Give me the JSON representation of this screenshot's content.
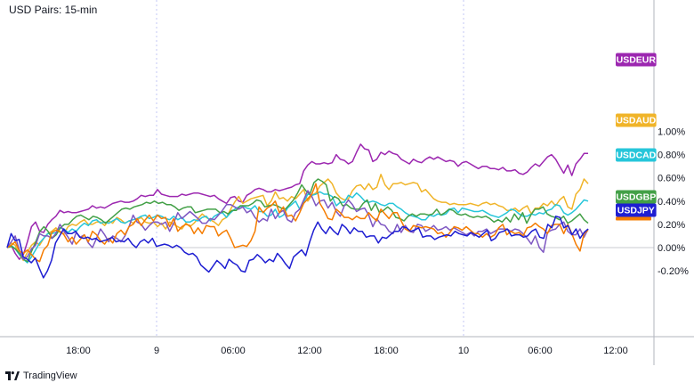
{
  "chart_data": {
    "type": "line",
    "title": "USD Pairs: 15-min",
    "x_tick_labels": [
      "18:00",
      "9",
      "06:00",
      "12:00",
      "18:00",
      "10",
      "06:00",
      "12:00"
    ],
    "day_separators": [
      "9",
      "10"
    ],
    "y_tick_labels": [
      "1.00%",
      "0.80%",
      "0.60%",
      "0.40%",
      "0.20%",
      "0.00%",
      "-0.20%"
    ],
    "ylim": [
      -0.37,
      1.0
    ],
    "grid": false,
    "series": [
      {
        "name": "USDEUR",
        "color": "#9c27b0",
        "last": 0.81,
        "values": [
          0.0,
          0.02,
          -0.05,
          -0.1,
          -0.06,
          0.05,
          0.18,
          0.22,
          0.14,
          0.13,
          0.2,
          0.24,
          0.27,
          0.32,
          0.3,
          0.31,
          0.3,
          0.3,
          0.31,
          0.32,
          0.33,
          0.36,
          0.34,
          0.35,
          0.34,
          0.36,
          0.38,
          0.39,
          0.4,
          0.39,
          0.39,
          0.4,
          0.42,
          0.45,
          0.44,
          0.45,
          0.45,
          0.5,
          0.46,
          0.45,
          0.44,
          0.44,
          0.44,
          0.46,
          0.45,
          0.46,
          0.47,
          0.47,
          0.46,
          0.45,
          0.44,
          0.45,
          0.42,
          0.4,
          0.38,
          0.43,
          0.44,
          0.4,
          0.39,
          0.45,
          0.47,
          0.5,
          0.51,
          0.5,
          0.48,
          0.48,
          0.5,
          0.49,
          0.5,
          0.51,
          0.52,
          0.54,
          0.55,
          0.66,
          0.71,
          0.74,
          0.72,
          0.72,
          0.73,
          0.72,
          0.73,
          0.8,
          0.76,
          0.75,
          0.72,
          0.74,
          0.82,
          0.89,
          0.85,
          0.84,
          0.74,
          0.76,
          0.82,
          0.8,
          0.83,
          0.81,
          0.8,
          0.76,
          0.74,
          0.72,
          0.76,
          0.74,
          0.73,
          0.76,
          0.78,
          0.76,
          0.78,
          0.76,
          0.74,
          0.75,
          0.74,
          0.7,
          0.73,
          0.74,
          0.72,
          0.7,
          0.68,
          0.7,
          0.7,
          0.68,
          0.68,
          0.67,
          0.69,
          0.66,
          0.66,
          0.67,
          0.64,
          0.63,
          0.65,
          0.69,
          0.72,
          0.7,
          0.74,
          0.78,
          0.8,
          0.76,
          0.7,
          0.64,
          0.71,
          0.62,
          0.72,
          0.76,
          0.81,
          0.81
        ]
      },
      {
        "name": "USDAUD",
        "color": "#f0b429",
        "last": 0.55,
        "values": [
          0.0,
          0.04,
          0.02,
          -0.06,
          -0.11,
          -0.04,
          0.02,
          0.05,
          0.02,
          0.08,
          0.12,
          0.14,
          0.17,
          0.13,
          0.12,
          0.18,
          0.2,
          0.19,
          0.22,
          0.24,
          0.2,
          0.2,
          0.22,
          0.22,
          0.19,
          0.23,
          0.21,
          0.26,
          0.24,
          0.21,
          0.23,
          0.21,
          0.24,
          0.26,
          0.22,
          0.21,
          0.22,
          0.18,
          0.21,
          0.16,
          0.22,
          0.2,
          0.18,
          0.16,
          0.21,
          0.18,
          0.21,
          0.25,
          0.29,
          0.26,
          0.24,
          0.22,
          0.19,
          0.24,
          0.26,
          0.33,
          0.39,
          0.44,
          0.38,
          0.4,
          0.42,
          0.43,
          0.44,
          0.45,
          0.36,
          0.4,
          0.48,
          0.42,
          0.43,
          0.4,
          0.44,
          0.42,
          0.46,
          0.5,
          0.4,
          0.45,
          0.47,
          0.53,
          0.56,
          0.59,
          0.55,
          0.47,
          0.43,
          0.41,
          0.42,
          0.49,
          0.53,
          0.54,
          0.5,
          0.55,
          0.5,
          0.52,
          0.63,
          0.54,
          0.5,
          0.55,
          0.55,
          0.56,
          0.54,
          0.55,
          0.56,
          0.55,
          0.48,
          0.5,
          0.46,
          0.42,
          0.4,
          0.39,
          0.39,
          0.37,
          0.38,
          0.37,
          0.37,
          0.37,
          0.38,
          0.37,
          0.36,
          0.38,
          0.39,
          0.37,
          0.38,
          0.36,
          0.35,
          0.32,
          0.32,
          0.34,
          0.31,
          0.34,
          0.36,
          0.29,
          0.34,
          0.34,
          0.38,
          0.36,
          0.4,
          0.36,
          0.41,
          0.44,
          0.35,
          0.33,
          0.46,
          0.5,
          0.59,
          0.55
        ]
      },
      {
        "name": "USDCAD",
        "color": "#26c6da",
        "last": 0.4,
        "values": [
          0.0,
          0.02,
          -0.01,
          -0.06,
          -0.1,
          -0.13,
          -0.08,
          -0.02,
          0.04,
          0.08,
          0.12,
          0.12,
          0.13,
          0.17,
          0.16,
          0.13,
          0.16,
          0.14,
          0.18,
          0.21,
          0.19,
          0.23,
          0.24,
          0.21,
          0.22,
          0.21,
          0.23,
          0.25,
          0.22,
          0.21,
          0.23,
          0.24,
          0.25,
          0.27,
          0.28,
          0.25,
          0.26,
          0.28,
          0.27,
          0.25,
          0.24,
          0.27,
          0.24,
          0.26,
          0.22,
          0.22,
          0.24,
          0.23,
          0.26,
          0.27,
          0.23,
          0.27,
          0.29,
          0.3,
          0.26,
          0.3,
          0.33,
          0.35,
          0.36,
          0.34,
          0.33,
          0.36,
          0.31,
          0.31,
          0.27,
          0.28,
          0.33,
          0.26,
          0.28,
          0.34,
          0.37,
          0.4,
          0.33,
          0.39,
          0.46,
          0.45,
          0.46,
          0.48,
          0.46,
          0.46,
          0.44,
          0.36,
          0.39,
          0.39,
          0.45,
          0.43,
          0.47,
          0.44,
          0.4,
          0.39,
          0.4,
          0.39,
          0.37,
          0.36,
          0.38,
          0.38,
          0.35,
          0.33,
          0.3,
          0.28,
          0.27,
          0.26,
          0.24,
          0.24,
          0.28,
          0.27,
          0.29,
          0.28,
          0.29,
          0.33,
          0.34,
          0.3,
          0.34,
          0.33,
          0.32,
          0.31,
          0.31,
          0.32,
          0.3,
          0.28,
          0.27,
          0.26,
          0.28,
          0.3,
          0.33,
          0.32,
          0.29,
          0.27,
          0.27,
          0.29,
          0.28,
          0.3,
          0.29,
          0.32,
          0.33,
          0.37,
          0.36,
          0.3,
          0.28,
          0.3,
          0.33,
          0.37,
          0.41,
          0.4
        ]
      },
      {
        "name": "USDGBP",
        "color": "#43a047",
        "last": 0.21,
        "values": [
          0.0,
          0.01,
          -0.01,
          -0.05,
          -0.1,
          -0.12,
          -0.03,
          0.05,
          0.14,
          0.18,
          0.14,
          0.08,
          0.11,
          0.17,
          0.2,
          0.2,
          0.24,
          0.27,
          0.28,
          0.26,
          0.24,
          0.27,
          0.26,
          0.24,
          0.21,
          0.24,
          0.27,
          0.3,
          0.33,
          0.34,
          0.33,
          0.35,
          0.36,
          0.37,
          0.39,
          0.38,
          0.4,
          0.38,
          0.39,
          0.37,
          0.37,
          0.35,
          0.32,
          0.34,
          0.35,
          0.35,
          0.3,
          0.31,
          0.32,
          0.33,
          0.33,
          0.33,
          0.3,
          0.31,
          0.29,
          0.32,
          0.32,
          0.36,
          0.36,
          0.36,
          0.38,
          0.41,
          0.4,
          0.35,
          0.36,
          0.37,
          0.36,
          0.34,
          0.33,
          0.37,
          0.41,
          0.47,
          0.54,
          0.49,
          0.46,
          0.56,
          0.59,
          0.57,
          0.54,
          0.4,
          0.44,
          0.42,
          0.36,
          0.37,
          0.34,
          0.33,
          0.33,
          0.38,
          0.41,
          0.32,
          0.38,
          0.3,
          0.32,
          0.35,
          0.32,
          0.26,
          0.25,
          0.23,
          0.27,
          0.29,
          0.27,
          0.29,
          0.29,
          0.28,
          0.29,
          0.33,
          0.28,
          0.3,
          0.33,
          0.32,
          0.29,
          0.28,
          0.29,
          0.27,
          0.26,
          0.27,
          0.26,
          0.27,
          0.25,
          0.22,
          0.24,
          0.22,
          0.26,
          0.22,
          0.29,
          0.24,
          0.3,
          0.21,
          0.28,
          0.33,
          0.33,
          0.35,
          0.29,
          0.27,
          0.26,
          0.24,
          0.27,
          0.21,
          0.23,
          0.26,
          0.29,
          0.24,
          0.21
        ]
      },
      {
        "name": "USDJPY",
        "color": "#1e1ed2",
        "last": 0.16,
        "values": [
          0.0,
          0.12,
          0.06,
          0.07,
          -0.08,
          -0.1,
          -0.13,
          -0.09,
          -0.18,
          -0.26,
          -0.2,
          -0.11,
          0.04,
          0.1,
          0.16,
          0.12,
          0.12,
          0.14,
          0.09,
          0.08,
          0.09,
          0.07,
          0.08,
          0.05,
          0.06,
          0.07,
          0.09,
          0.05,
          0.06,
          0.05,
          0.08,
          0.03,
          0.0,
          0.05,
          0.07,
          0.04,
          0.08,
          0.01,
          0.02,
          0.03,
          0.02,
          0.0,
          0.02,
          0.0,
          -0.04,
          -0.06,
          -0.05,
          -0.08,
          -0.15,
          -0.18,
          -0.21,
          -0.16,
          -0.11,
          -0.14,
          -0.18,
          -0.1,
          -0.13,
          -0.15,
          -0.2,
          -0.21,
          -0.11,
          -0.1,
          -0.06,
          -0.09,
          -0.13,
          -0.1,
          -0.12,
          -0.05,
          -0.09,
          -0.14,
          -0.18,
          -0.08,
          -0.05,
          -0.02,
          -0.07,
          0.05,
          0.15,
          0.22,
          0.16,
          0.12,
          0.18,
          0.14,
          0.11,
          0.2,
          0.17,
          0.12,
          0.17,
          0.14,
          0.14,
          0.09,
          0.1,
          0.1,
          0.04,
          0.09,
          0.08,
          0.11,
          0.14,
          0.14,
          0.18,
          0.17,
          0.14,
          0.15,
          0.17,
          0.09,
          0.1,
          0.1,
          0.07,
          0.09,
          0.1,
          0.11,
          0.1,
          0.14,
          0.12,
          0.11,
          0.1,
          0.13,
          0.11,
          0.09,
          0.12,
          0.15,
          0.06,
          0.08,
          0.13,
          0.14,
          0.16,
          0.1,
          0.11,
          0.11,
          0.09,
          0.1,
          0.14,
          0.16,
          0.09,
          0.08,
          0.2,
          0.17,
          0.27,
          0.26,
          0.17,
          0.19,
          0.11,
          0.16,
          0.08,
          0.13,
          0.16
        ]
      },
      {
        "name": "",
        "color": "#f57c00",
        "last": 0.15,
        "values": [
          0.0,
          0.02,
          0.05,
          -0.03,
          -0.05,
          -0.02,
          -0.06,
          -0.1,
          -0.12,
          -0.02,
          0.02,
          0.13,
          0.15,
          0.14,
          0.11,
          0.05,
          0.09,
          0.03,
          0.07,
          0.11,
          0.05,
          0.14,
          0.11,
          0.06,
          0.03,
          0.08,
          0.04,
          0.12,
          0.15,
          0.11,
          0.18,
          0.2,
          0.25,
          0.19,
          0.24,
          0.28,
          0.23,
          0.28,
          0.25,
          0.26,
          0.18,
          0.25,
          0.14,
          0.18,
          0.2,
          0.19,
          0.12,
          0.17,
          0.12,
          0.19,
          0.18,
          0.18,
          0.1,
          0.13,
          0.15,
          0.08,
          0.0,
          0.01,
          0.02,
          0.01,
          0.06,
          0.14,
          0.35,
          0.3,
          0.34,
          0.36,
          0.4,
          0.3,
          0.35,
          0.27,
          0.28,
          0.23,
          0.3,
          0.38,
          0.42,
          0.46,
          0.55,
          0.38,
          0.32,
          0.25,
          0.24,
          0.33,
          0.3,
          0.26,
          0.26,
          0.24,
          0.27,
          0.25,
          0.25,
          0.3,
          0.26,
          0.23,
          0.33,
          0.29,
          0.25,
          0.3,
          0.3,
          0.23,
          0.16,
          0.14,
          0.19,
          0.18,
          0.17,
          0.18,
          0.17,
          0.16,
          0.12,
          0.13,
          0.09,
          0.13,
          0.18,
          0.17,
          0.15,
          0.18,
          0.15,
          0.12,
          0.12,
          0.09,
          0.12,
          0.09,
          0.11,
          0.17,
          0.2,
          0.11,
          0.14,
          0.12,
          0.13,
          0.1,
          0.17,
          0.18,
          0.21,
          0.18,
          0.16,
          0.12,
          0.19,
          0.2,
          0.2,
          0.12,
          0.2,
          0.12,
          0.03,
          -0.03,
          0.12,
          0.15
        ]
      },
      {
        "name": "",
        "color": "#7e57c2",
        "last": 0.16,
        "values": [
          0.0,
          0.05,
          0.1,
          -0.02,
          -0.1,
          -0.08,
          -0.01,
          0.02,
          0.12,
          0.1,
          0.1,
          0.08,
          0.12,
          0.2,
          0.14,
          0.09,
          0.03,
          0.13,
          0.09,
          0.11,
          0.04,
          0.0,
          0.08,
          0.16,
          0.11,
          0.05,
          0.1,
          0.08,
          0.05,
          0.1,
          0.18,
          0.28,
          0.22,
          0.2,
          0.15,
          0.19,
          0.22,
          0.22,
          0.2,
          0.22,
          0.14,
          0.21,
          0.3,
          0.25,
          0.28,
          0.31,
          0.28,
          0.25,
          0.21,
          0.21,
          0.25,
          0.24,
          0.28,
          0.32,
          0.37,
          0.37,
          0.35,
          0.33,
          0.35,
          0.3,
          0.32,
          0.26,
          0.22,
          0.25,
          0.23,
          0.33,
          0.25,
          0.3,
          0.32,
          0.24,
          0.22,
          0.3,
          0.33,
          0.41,
          0.49,
          0.44,
          0.36,
          0.4,
          0.41,
          0.34,
          0.39,
          0.31,
          0.27,
          0.36,
          0.41,
          0.37,
          0.31,
          0.33,
          0.34,
          0.28,
          0.18,
          0.25,
          0.2,
          0.19,
          0.14,
          0.12,
          0.2,
          0.13,
          0.19,
          0.14,
          0.13,
          0.2,
          0.19,
          0.14,
          0.16,
          0.19,
          0.15,
          0.16,
          0.18,
          0.15,
          0.17,
          0.15,
          0.13,
          0.11,
          0.13,
          0.1,
          0.14,
          0.14,
          0.16,
          0.12,
          0.14,
          0.16,
          0.16,
          0.16,
          0.14,
          0.16,
          0.15,
          0.12,
          0.08,
          0.03,
          0.1,
          0.0,
          -0.04,
          0.13,
          0.15,
          0.16,
          0.2,
          0.22,
          0.14,
          0.11,
          0.11,
          0.16,
          0.09,
          0.16
        ]
      }
    ]
  },
  "labels": {
    "badges": [
      {
        "text": "USDEUR",
        "color": "#9c27b0"
      },
      {
        "text": "USDAUD",
        "color": "#f0b429"
      },
      {
        "text": "USDCAD",
        "color": "#26c6da"
      },
      {
        "text": "USDGBP",
        "color": "#43a047"
      },
      {
        "text": "USDJPY",
        "color": "#1e1ed2"
      }
    ]
  },
  "branding": {
    "text": "TradingView"
  }
}
